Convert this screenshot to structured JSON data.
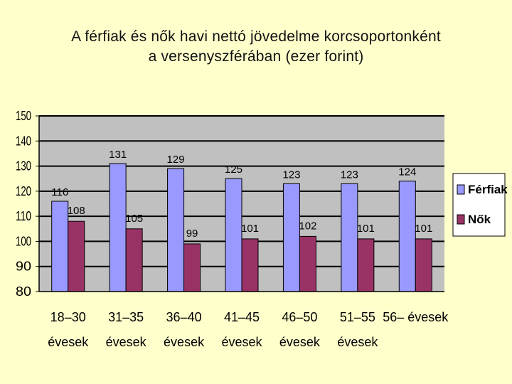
{
  "title_line1": "A férfiak és nők havi nettó jövedelme korcsoportonként",
  "title_line2": "a versenyszférában (ezer forint)",
  "colors": {
    "background": "#FFFFCC",
    "plot_area": "#C0C0C0",
    "series_ferfiak": "#9999FF",
    "series_nok": "#993366"
  },
  "chart_data": {
    "type": "bar",
    "title": "A férfiak és nők havi nettó jövedelme korcsoportonként a versenyszférában (ezer forint)",
    "categories": [
      [
        "18–30",
        "évesek"
      ],
      [
        "31–35",
        "évesek"
      ],
      [
        "36–40",
        "évesek"
      ],
      [
        "41–45",
        "évesek"
      ],
      [
        "46–50",
        "évesek"
      ],
      [
        "51–55",
        "évesek"
      ],
      [
        "56– évesek",
        ""
      ]
    ],
    "series": [
      {
        "name": "Férfiak",
        "values": [
          116,
          131,
          129,
          125,
          123,
          123,
          124
        ]
      },
      {
        "name": "Nők",
        "values": [
          108,
          105,
          99,
          101,
          102,
          101,
          101
        ]
      }
    ],
    "ylim": [
      80,
      150
    ],
    "yticks": [
      80,
      90,
      100,
      110,
      120,
      130,
      140,
      150
    ],
    "grid": true,
    "legend": "right"
  }
}
